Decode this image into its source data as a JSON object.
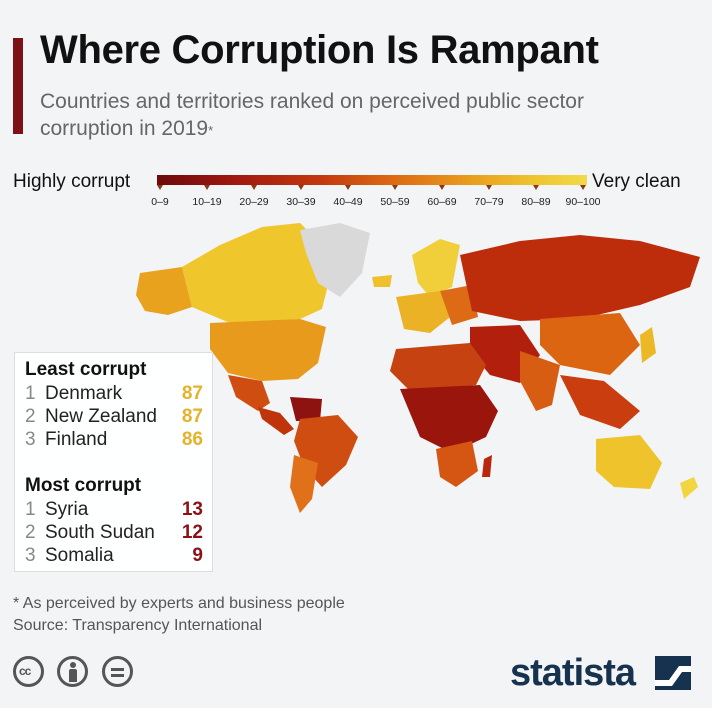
{
  "header": {
    "title": "Where Corruption Is Rampant",
    "subtitle": "Countries and territories ranked on perceived public sector corruption in 2019",
    "subtitle_mark": "*",
    "accent_color": "#7c1116"
  },
  "scale": {
    "left_label": "Highly corrupt",
    "right_label": "Very clean",
    "ranges": [
      "0–9",
      "10–19",
      "20–29",
      "30–39",
      "40–49",
      "50–59",
      "60–69",
      "70–79",
      "80–89",
      "90–100"
    ],
    "colors": {
      "low": "#6c0a0c",
      "mid": "#dc6a12",
      "high": "#f1da4a",
      "no_data": "#d9d9d9"
    }
  },
  "legend": {
    "least": {
      "heading": "Least corrupt",
      "items": [
        {
          "rank": "1",
          "name": "Denmark",
          "score": "87"
        },
        {
          "rank": "2",
          "name": "New Zealand",
          "score": "87"
        },
        {
          "rank": "3",
          "name": "Finland",
          "score": "86"
        }
      ],
      "score_color": "#e5b22a"
    },
    "most": {
      "heading": "Most corrupt",
      "items": [
        {
          "rank": "1",
          "name": "Syria",
          "score": "13"
        },
        {
          "rank": "2",
          "name": "South Sudan",
          "score": "12"
        },
        {
          "rank": "3",
          "name": "Somalia",
          "score": "9"
        }
      ],
      "score_color": "#8c1016"
    }
  },
  "footer": {
    "note": "* As perceived by experts and business people",
    "source": "Source: Transparency International",
    "brand": "statista",
    "license_icons": [
      "cc-icon",
      "attribution-icon",
      "no-derivatives-icon"
    ]
  }
}
